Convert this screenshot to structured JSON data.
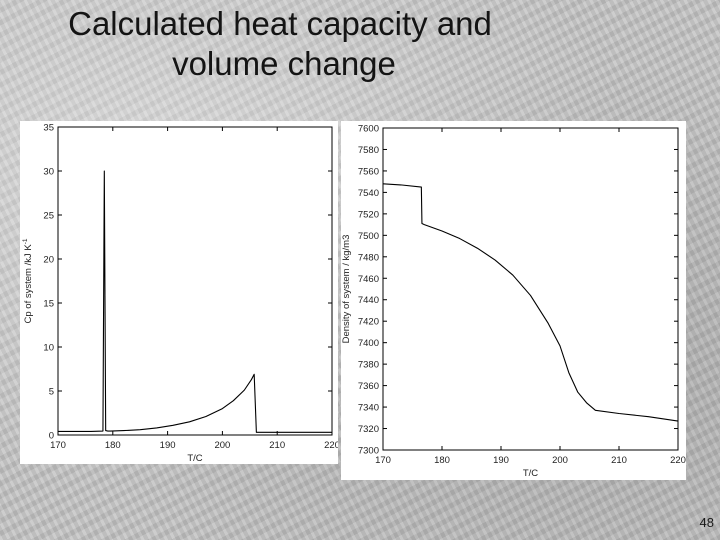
{
  "slide": {
    "title_line1": "Calculated heat capacity and",
    "title_line2": "volume change",
    "number": "48"
  },
  "chart_data": [
    {
      "type": "line",
      "xlabel": "T/C",
      "ylabel": "Cp of system /kJ K",
      "ylabel_sup": "-1",
      "xlim": [
        170,
        220
      ],
      "ylim": [
        0,
        35
      ],
      "xticks": [
        170,
        180,
        190,
        200,
        210,
        220
      ],
      "yticks": [
        0,
        5,
        10,
        15,
        20,
        25,
        30,
        35
      ],
      "grid": false,
      "series": [
        {
          "x": [
            170,
            176,
            178.2,
            178.45,
            178.7,
            179.1,
            179.6,
            182,
            185,
            188,
            191,
            194,
            197,
            200,
            202,
            204,
            205.3,
            205.8,
            206.2,
            210,
            215,
            220
          ],
          "y": [
            0.4,
            0.4,
            0.45,
            30,
            0.5,
            0.45,
            0.45,
            0.5,
            0.6,
            0.8,
            1.1,
            1.5,
            2.1,
            3.0,
            3.9,
            5.1,
            6.3,
            6.9,
            0.3,
            0.3,
            0.3,
            0.3
          ]
        }
      ]
    },
    {
      "type": "line",
      "xlabel": "T/C",
      "ylabel": "Density of system / kg/m3",
      "xlim": [
        170,
        220
      ],
      "ylim": [
        7300,
        7600
      ],
      "xticks": [
        170,
        180,
        190,
        200,
        210,
        220
      ],
      "yticks": [
        7300,
        7320,
        7340,
        7360,
        7380,
        7400,
        7420,
        7440,
        7460,
        7480,
        7500,
        7520,
        7540,
        7560,
        7580,
        7600
      ],
      "grid": false,
      "series": [
        {
          "x": [
            170,
            173,
            176.5,
            176.6,
            177,
            180,
            183,
            186,
            189,
            192,
            195,
            198,
            200,
            201.5,
            203,
            204.5,
            206,
            210,
            215,
            220
          ],
          "y": [
            7548,
            7547,
            7545,
            7511,
            7510,
            7504,
            7497,
            7488,
            7477,
            7463,
            7444,
            7418,
            7397,
            7372,
            7354,
            7344,
            7337,
            7334,
            7331,
            7327
          ]
        }
      ]
    }
  ]
}
